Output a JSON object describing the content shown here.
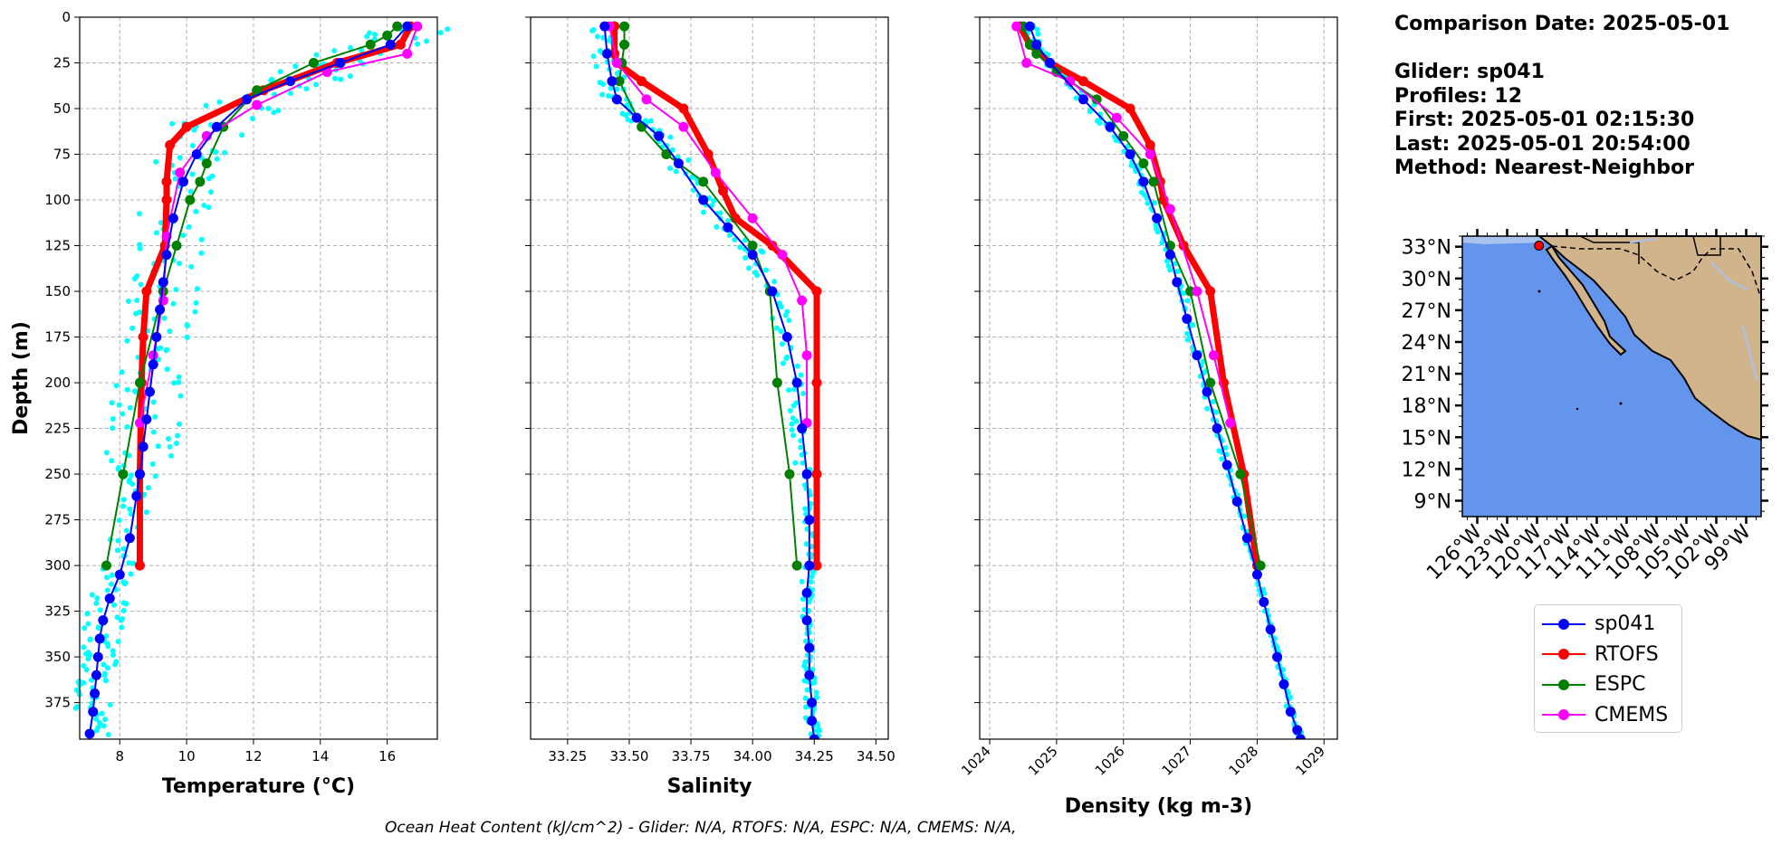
{
  "info": {
    "comparison_date": "Comparison Date: 2025-05-01",
    "glider": "Glider: sp041",
    "profiles": "Profiles: 12",
    "first": "First: 2025-05-01 02:15:30",
    "last": "Last: 2025-05-01 20:54:00",
    "method": "Method: Nearest-Neighbor"
  },
  "footer": "Ocean Heat Content (kJ/cm^2) - Glider: N/A,  RTOFS: N/A,  ESPC: N/A,  CMEMS: N/A,",
  "legend": [
    {
      "label": "sp041",
      "color": "#0000ff"
    },
    {
      "label": "RTOFS",
      "color": "#ff0000"
    },
    {
      "label": "ESPC",
      "color": "#008000"
    },
    {
      "label": "CMEMS",
      "color": "#ff00ff"
    }
  ],
  "colors": {
    "glider": "#0000ff",
    "rtofs": "#ff0000",
    "espc": "#008000",
    "cmems": "#ff00ff",
    "raw": "#00ffff",
    "ocean": "#6495ed",
    "land": "#d2b48c",
    "shelf": "#a7c3ee"
  },
  "chart_data": [
    {
      "type": "line",
      "xlabel": "Temperature (°C)",
      "ylabel": "Depth (m)",
      "xlim": [
        6.8,
        17.5
      ],
      "ylim": [
        395,
        0
      ],
      "grid": true,
      "xticks": [
        8,
        10,
        12,
        14,
        16
      ],
      "yticks": [
        0,
        25,
        50,
        75,
        100,
        125,
        150,
        175,
        200,
        225,
        250,
        275,
        300,
        325,
        350,
        375
      ],
      "series": [
        {
          "name": "sp041",
          "x": [
            16.6,
            16.1,
            14.6,
            13.1,
            11.8,
            10.9,
            10.3,
            9.9,
            9.6,
            9.4,
            9.3,
            9.2,
            9.1,
            9.0,
            8.9,
            8.8,
            8.7,
            8.6,
            8.5,
            8.3,
            8.0,
            7.7,
            7.5,
            7.4,
            7.35,
            7.3,
            7.25,
            7.2,
            7.1
          ],
          "y": [
            5,
            15,
            25,
            35,
            45,
            60,
            75,
            90,
            110,
            130,
            145,
            160,
            175,
            190,
            205,
            220,
            235,
            250,
            262,
            285,
            305,
            318,
            330,
            340,
            350,
            360,
            370,
            380,
            392
          ]
        },
        {
          "name": "RTOFS",
          "x": [
            16.7,
            16.4,
            14.5,
            12.3,
            10.0,
            9.5,
            9.4,
            9.4,
            9.35,
            8.8,
            8.7,
            8.65,
            8.6,
            8.6
          ],
          "y": [
            5,
            15,
            25,
            40,
            60,
            70,
            90,
            100,
            125,
            150,
            175,
            200,
            250,
            300
          ]
        },
        {
          "name": "ESPC",
          "x": [
            16.3,
            16.0,
            15.5,
            13.8,
            12.1,
            11.1,
            10.6,
            10.4,
            10.1,
            9.7,
            9.3,
            8.6,
            8.1,
            7.6
          ],
          "y": [
            5,
            10,
            15,
            25,
            40,
            60,
            80,
            90,
            100,
            125,
            150,
            200,
            250,
            300
          ]
        },
        {
          "name": "CMEMS",
          "x": [
            16.9,
            16.6,
            14.2,
            12.1,
            10.6,
            9.8,
            9.4,
            9.3,
            9.0,
            8.6
          ],
          "y": [
            5,
            20,
            30,
            48,
            65,
            85,
            120,
            155,
            185,
            222
          ]
        }
      ]
    },
    {
      "type": "line",
      "xlabel": "Salinity",
      "ylabel": "",
      "xlim": [
        33.1,
        34.55
      ],
      "ylim": [
        395,
        0
      ],
      "grid": true,
      "xticks": [
        33.25,
        33.5,
        33.75,
        34.0,
        34.25,
        34.5
      ],
      "series": [
        {
          "name": "sp041",
          "x": [
            33.4,
            33.41,
            33.43,
            33.45,
            33.53,
            33.62,
            33.7,
            33.8,
            33.9,
            34.0,
            34.08,
            34.14,
            34.18,
            34.2,
            34.22,
            34.23,
            34.23,
            34.22,
            34.22,
            34.23,
            34.23,
            34.24,
            34.24,
            34.25
          ],
          "y": [
            5,
            20,
            35,
            45,
            55,
            65,
            80,
            100,
            115,
            130,
            150,
            175,
            200,
            225,
            250,
            275,
            300,
            315,
            330,
            345,
            360,
            375,
            385,
            395
          ]
        },
        {
          "name": "RTOFS",
          "x": [
            33.44,
            33.44,
            33.45,
            33.55,
            33.72,
            33.82,
            33.88,
            33.93,
            34.08,
            34.26,
            34.26,
            34.26,
            34.26
          ],
          "y": [
            5,
            20,
            25,
            35,
            50,
            75,
            95,
            110,
            125,
            150,
            200,
            250,
            300
          ]
        },
        {
          "name": "ESPC",
          "x": [
            33.48,
            33.48,
            33.47,
            33.46,
            33.55,
            33.65,
            33.8,
            34.0,
            34.07,
            34.1,
            34.15,
            34.18
          ],
          "y": [
            5,
            15,
            25,
            35,
            60,
            75,
            90,
            125,
            150,
            200,
            250,
            300
          ]
        },
        {
          "name": "CMEMS",
          "x": [
            33.42,
            33.45,
            33.57,
            33.72,
            33.85,
            34.0,
            34.12,
            34.2,
            34.22,
            34.22
          ],
          "y": [
            5,
            25,
            45,
            60,
            85,
            110,
            130,
            155,
            185,
            222
          ]
        }
      ]
    },
    {
      "type": "line",
      "xlabel": "Density (kg m-3)",
      "ylabel": "",
      "xlim": [
        1023.85,
        1029.2
      ],
      "ylim": [
        395,
        0
      ],
      "grid": true,
      "xticks": [
        1024,
        1025,
        1026,
        1027,
        1028,
        1029
      ],
      "series": [
        {
          "name": "sp041",
          "x": [
            1024.6,
            1024.7,
            1024.9,
            1025.4,
            1025.8,
            1026.1,
            1026.3,
            1026.5,
            1026.7,
            1026.8,
            1026.95,
            1027.1,
            1027.25,
            1027.4,
            1027.55,
            1027.7,
            1027.85,
            1028.0,
            1028.1,
            1028.2,
            1028.3,
            1028.4,
            1028.5,
            1028.6,
            1028.65
          ],
          "y": [
            5,
            15,
            25,
            45,
            60,
            75,
            90,
            110,
            130,
            145,
            165,
            185,
            205,
            225,
            245,
            265,
            285,
            305,
            320,
            335,
            350,
            365,
            380,
            390,
            395
          ]
        },
        {
          "name": "RTOFS",
          "x": [
            1024.45,
            1024.6,
            1024.9,
            1025.4,
            1026.1,
            1026.4,
            1026.55,
            1026.6,
            1026.9,
            1027.3,
            1027.5,
            1027.8,
            1028.0
          ],
          "y": [
            5,
            15,
            25,
            35,
            50,
            70,
            90,
            100,
            125,
            150,
            200,
            250,
            300
          ]
        },
        {
          "name": "ESPC",
          "x": [
            1024.5,
            1024.6,
            1024.7,
            1025.0,
            1025.6,
            1026.0,
            1026.3,
            1026.45,
            1026.7,
            1027.0,
            1027.3,
            1027.75,
            1028.05
          ],
          "y": [
            5,
            15,
            20,
            30,
            45,
            65,
            80,
            90,
            125,
            150,
            200,
            250,
            300
          ]
        },
        {
          "name": "CMEMS",
          "x": [
            1024.4,
            1024.55,
            1025.2,
            1025.9,
            1026.4,
            1026.7,
            1027.1,
            1027.35,
            1027.6
          ],
          "y": [
            5,
            25,
            35,
            55,
            75,
            105,
            150,
            185,
            222
          ]
        }
      ]
    }
  ],
  "map": {
    "lat_ticks": [
      "33°N",
      "30°N",
      "27°N",
      "24°N",
      "21°N",
      "18°N",
      "15°N",
      "12°N",
      "9°N"
    ],
    "lon_ticks": [
      "126°W",
      "123°W",
      "120°W",
      "117°W",
      "114°W",
      "111°W",
      "108°W",
      "105°W",
      "102°W",
      "99°W"
    ],
    "lat_range": [
      7.5,
      34
    ],
    "lon_range": [
      -127.5,
      -97.5
    ],
    "glider_position": {
      "lon": -119.8,
      "lat": 33.1
    }
  }
}
